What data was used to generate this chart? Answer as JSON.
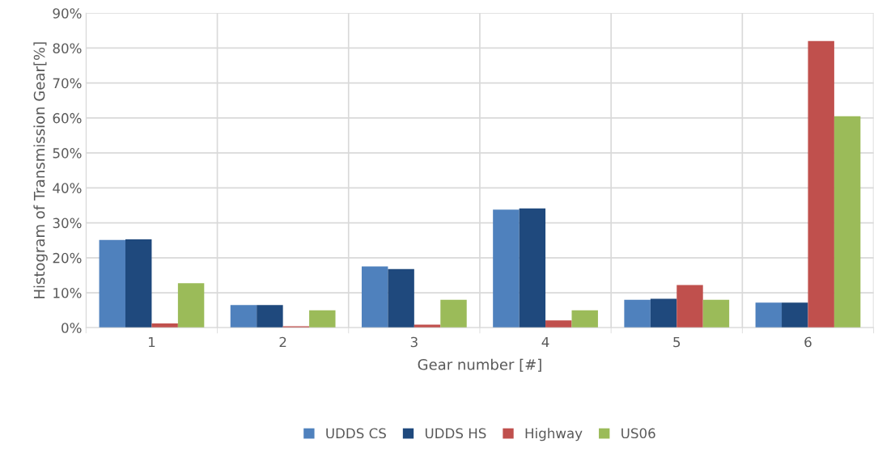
{
  "chart_data": {
    "type": "bar",
    "xlabel": "Gear number [#]",
    "ylabel": "Histogram of Transmission Gear[%]",
    "categories": [
      "1",
      "2",
      "3",
      "4",
      "5",
      "6"
    ],
    "series": [
      {
        "name": "UDDS CS",
        "color": "#4f81bd",
        "values": [
          25.1,
          6.5,
          17.5,
          33.8,
          8.0,
          7.2
        ]
      },
      {
        "name": "UDDS HS",
        "color": "#1f497d",
        "values": [
          25.3,
          6.5,
          16.8,
          34.1,
          8.3,
          7.2
        ]
      },
      {
        "name": "Highway",
        "color": "#c0504d",
        "values": [
          1.2,
          0.4,
          0.9,
          2.1,
          12.2,
          82.0
        ]
      },
      {
        "name": "US06",
        "color": "#9bbb59",
        "values": [
          12.7,
          5.0,
          8.0,
          5.0,
          8.0,
          60.5
        ]
      }
    ],
    "ylim": [
      0,
      90
    ],
    "yticks": [
      {
        "value": 0,
        "label": "0%"
      },
      {
        "value": 10,
        "label": "10%"
      },
      {
        "value": 20,
        "label": "20%"
      },
      {
        "value": 30,
        "label": "30%"
      },
      {
        "value": 40,
        "label": "40%"
      },
      {
        "value": 50,
        "label": "50%"
      },
      {
        "value": 60,
        "label": "60%"
      },
      {
        "value": 70,
        "label": "70%"
      },
      {
        "value": 80,
        "label": "80%"
      },
      {
        "value": 90,
        "label": "90%"
      }
    ],
    "grid": true,
    "legend": "bottom"
  }
}
